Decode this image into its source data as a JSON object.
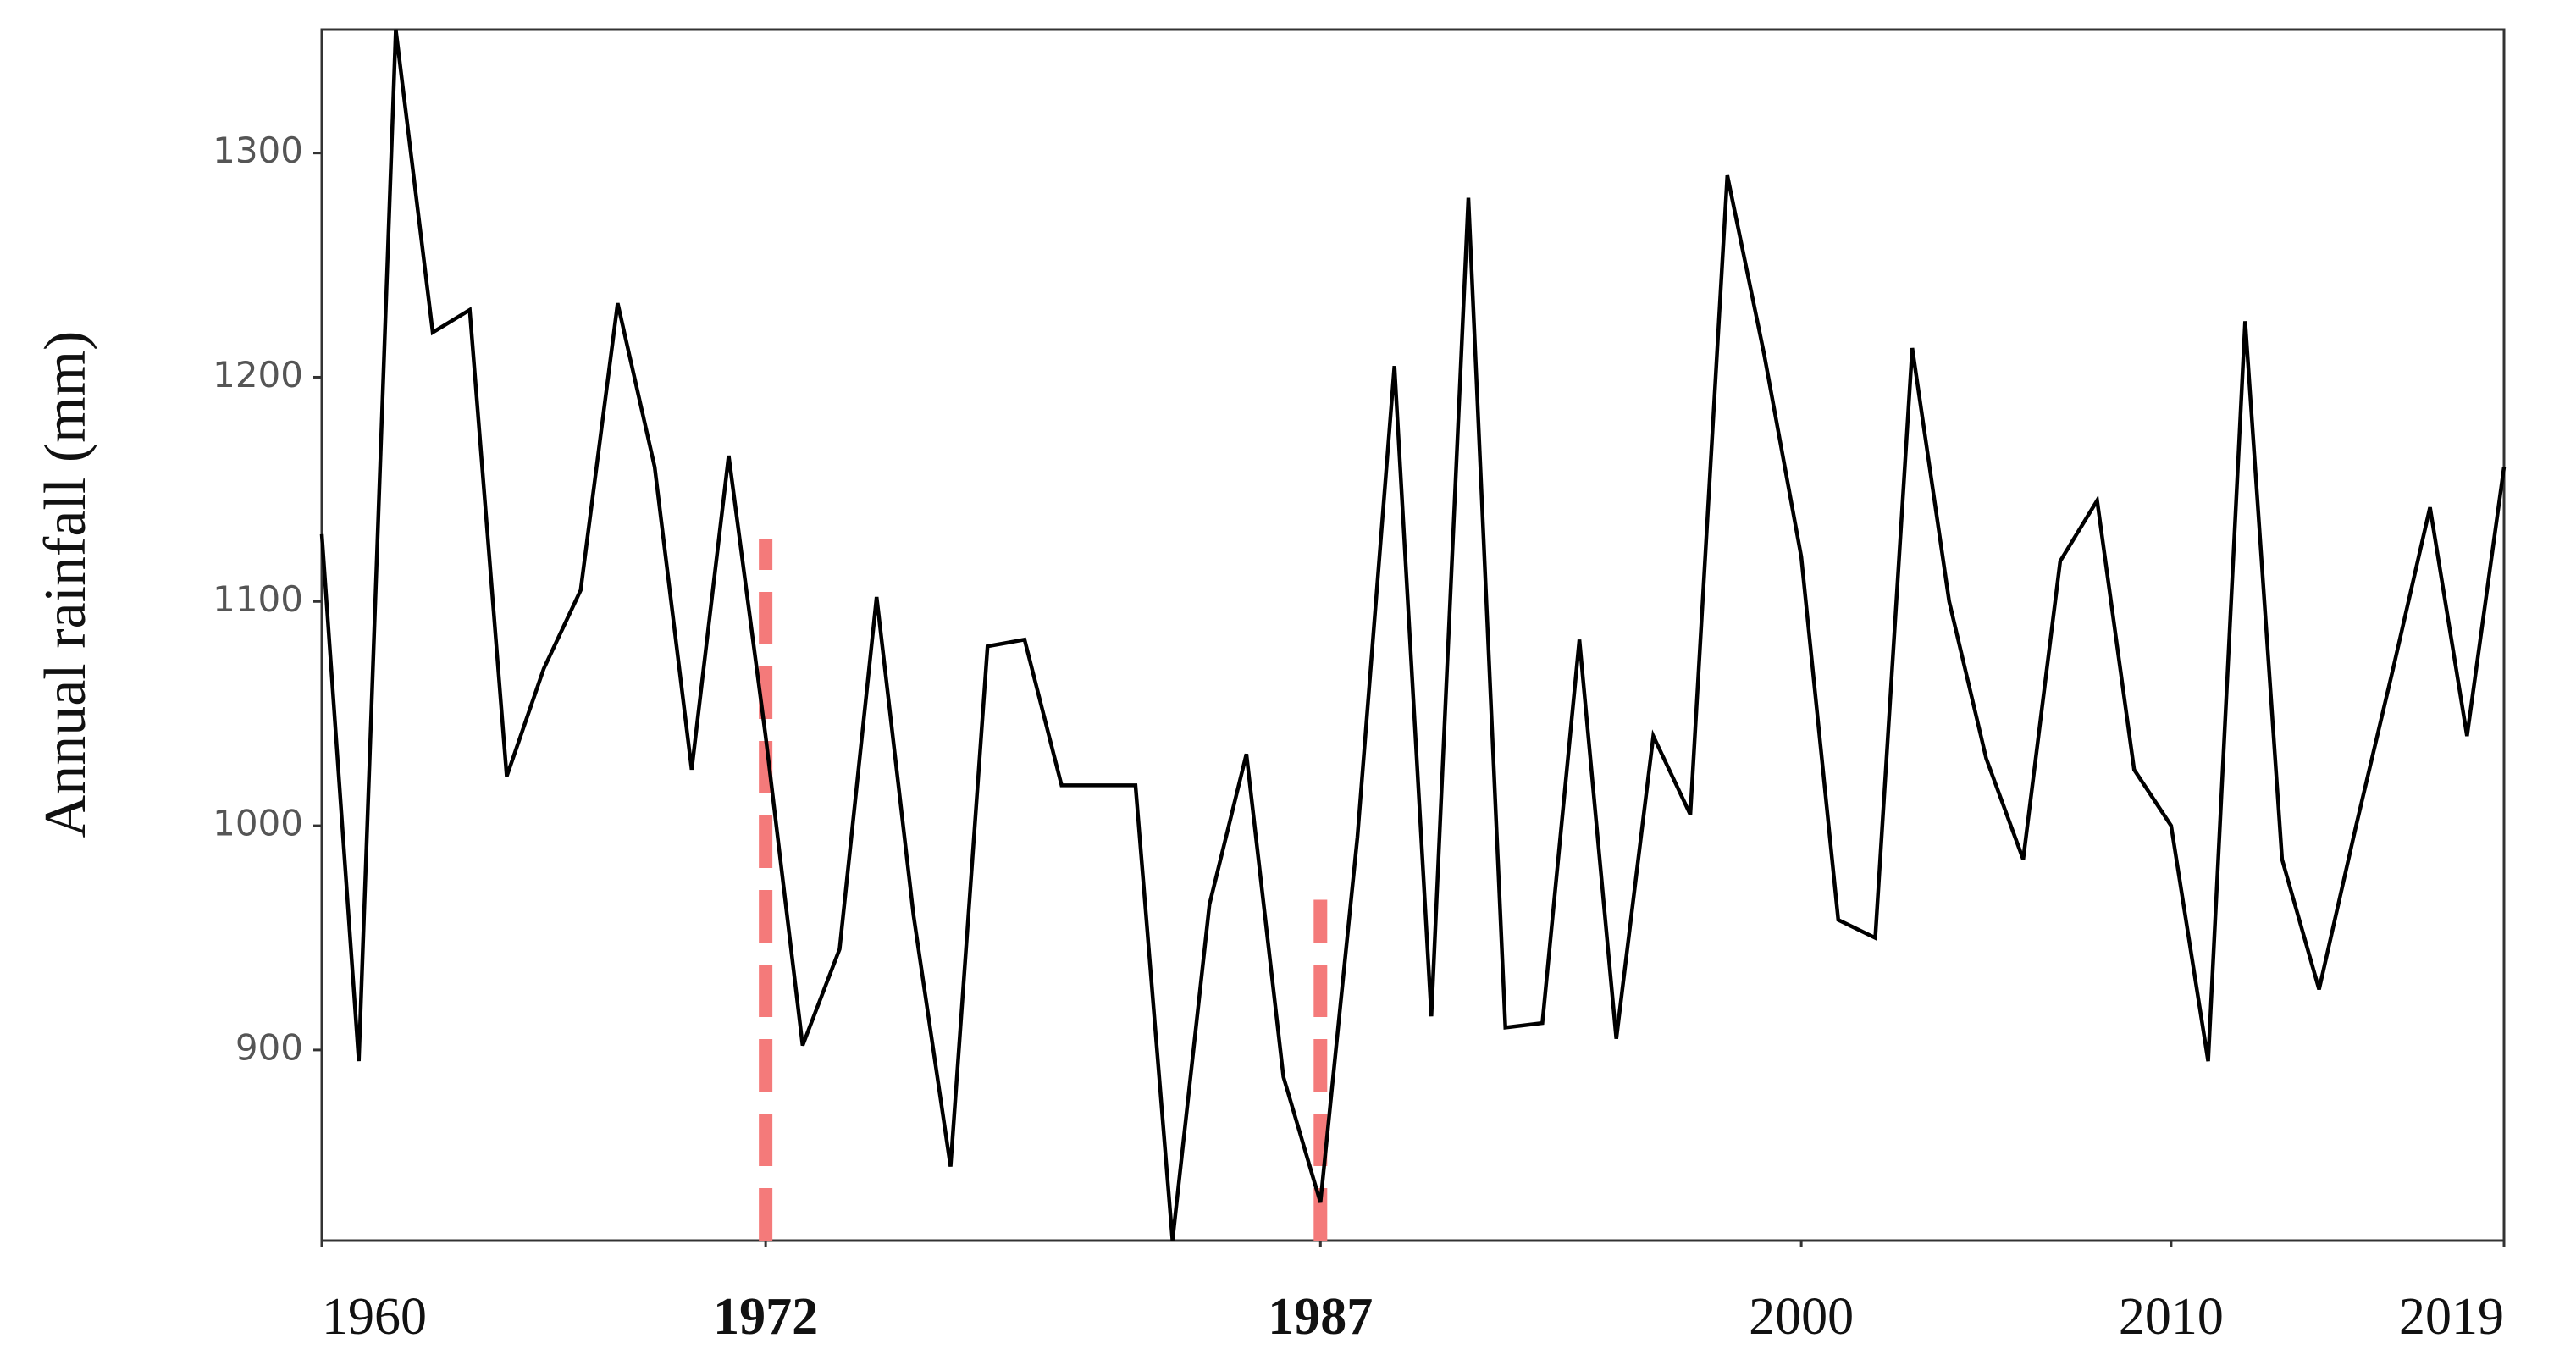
{
  "chart_data": {
    "type": "line",
    "y_label": "Annual rainfall (mm)",
    "x": [
      1960,
      1961,
      1962,
      1963,
      1964,
      1965,
      1966,
      1967,
      1968,
      1969,
      1970,
      1971,
      1972,
      1973,
      1974,
      1975,
      1976,
      1977,
      1978,
      1979,
      1980,
      1981,
      1982,
      1983,
      1984,
      1985,
      1986,
      1987,
      1988,
      1989,
      1990,
      1991,
      1992,
      1993,
      1994,
      1995,
      1996,
      1997,
      1998,
      1999,
      2000,
      2001,
      2002,
      2003,
      2004,
      2005,
      2006,
      2007,
      2008,
      2009,
      2010,
      2011,
      2012,
      2013,
      2014,
      2015,
      2016,
      2017,
      2018,
      2019
    ],
    "series": [
      {
        "color": "#000000",
        "values": [
          1130,
          895,
          1355,
          1220,
          1230,
          1022,
          1070,
          1105,
          1233,
          1160,
          1025,
          1165,
          1040,
          902,
          945,
          1102,
          960,
          848,
          1080,
          1083,
          1018,
          1018,
          1018,
          815,
          965,
          1032,
          888,
          832,
          995,
          1205,
          915,
          1280,
          910,
          912,
          1083,
          905,
          1040,
          1005,
          1290,
          1210,
          1120,
          958,
          950,
          1213,
          1100,
          1030,
          985,
          1118,
          1145,
          1025,
          1000,
          895,
          1225,
          985,
          927,
          1000,
          1070,
          1142,
          1040,
          1160
        ]
      }
    ],
    "change_points": [
      {
        "x": 1972,
        "top": 1128
      },
      {
        "x": 1987,
        "top": 967
      }
    ],
    "change_color": "#f47a7a",
    "xlim": [
      1960,
      2019
    ],
    "xticks": [
      1960,
      1972,
      1987,
      2000,
      2010,
      2019
    ],
    "ylim": [
      815,
      1355
    ],
    "yticks": [
      900,
      1000,
      1100,
      1200,
      1300
    ],
    "grid": false
  }
}
